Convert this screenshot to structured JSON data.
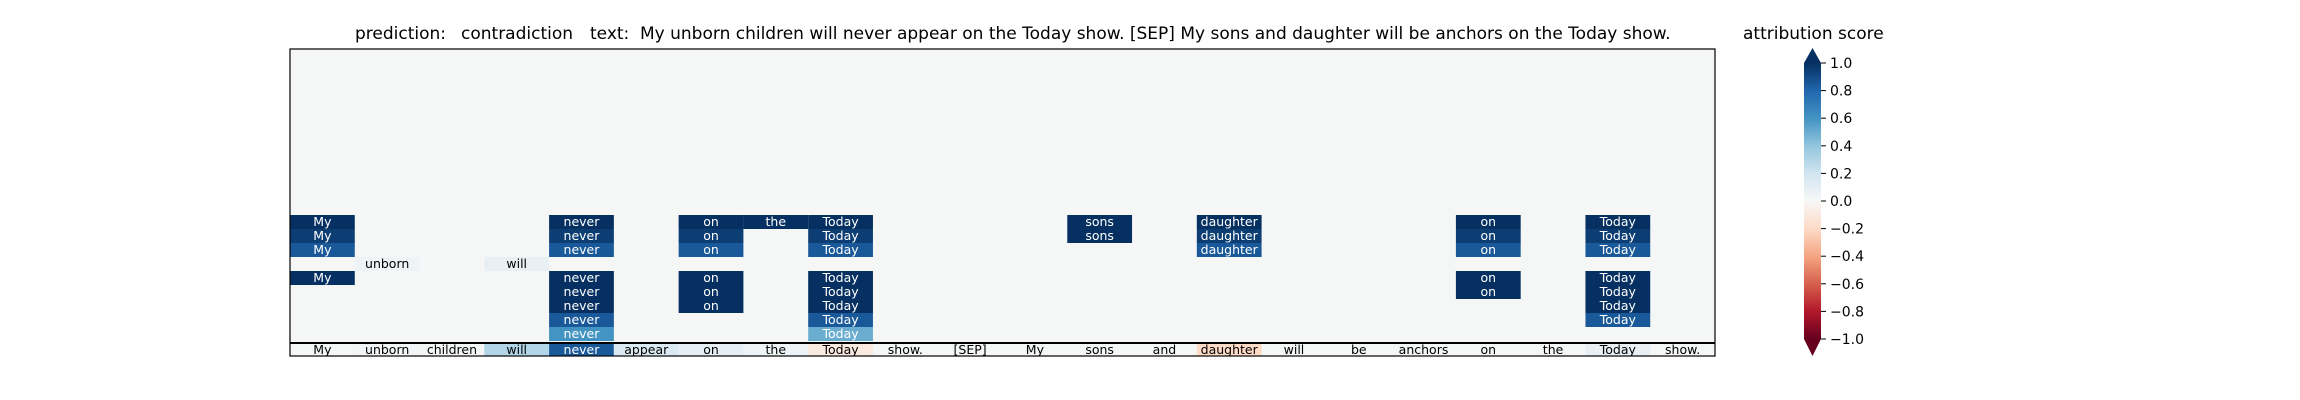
{
  "title": {
    "prediction_label": "prediction:",
    "prediction_value": "contradiction",
    "text_label": "text:",
    "text_value": "My unborn children will never appear on the Today show. [SEP] My sons and daughter will be anchors on the Today show."
  },
  "colorbar": {
    "title": "attribution score",
    "ticks": [
      "1.0",
      "0.8",
      "0.6",
      "0.4",
      "0.2",
      "0.0",
      "−0.2",
      "−0.4",
      "−0.6",
      "−0.8",
      "−1.0"
    ],
    "colormap": "RdBu",
    "range": [
      -1.0,
      1.0
    ]
  },
  "chart_data": {
    "type": "heatmap",
    "title": "prediction:  contradiction     text:  My unborn children will never appear on the Today show. [SEP] My sons and daughter will be anchors on the Today show.",
    "tokens": [
      "My",
      "unborn",
      "children",
      "will",
      "never",
      "appear",
      "on",
      "the",
      "Today",
      "show.",
      "[SEP]",
      "My",
      "sons",
      "and",
      "daughter",
      "will",
      "be",
      "anchors",
      "on",
      "the",
      "Today",
      "show."
    ],
    "bottom_row_scores": [
      0.0,
      0.02,
      0.0,
      0.3,
      0.85,
      0.15,
      0.1,
      0.05,
      -0.1,
      0.0,
      0.0,
      0.0,
      0.0,
      0.0,
      -0.2,
      0.0,
      0.0,
      0.0,
      0.0,
      0.0,
      0.08,
      0.0
    ],
    "layers": [
      {
        "cells": [
          {
            "token": 0,
            "value": 1.0
          },
          {
            "token": 4,
            "value": 1.0
          },
          {
            "token": 6,
            "value": 1.0
          },
          {
            "token": 7,
            "value": 1.0
          },
          {
            "token": 8,
            "value": 1.0
          },
          {
            "token": 12,
            "value": 1.0
          },
          {
            "token": 14,
            "value": 1.0
          },
          {
            "token": 18,
            "value": 1.0
          },
          {
            "token": 20,
            "value": 1.0
          }
        ]
      },
      {
        "cells": [
          {
            "token": 0,
            "value": 0.95
          },
          {
            "token": 4,
            "value": 0.95
          },
          {
            "token": 6,
            "value": 0.95
          },
          {
            "token": 8,
            "value": 0.95
          },
          {
            "token": 12,
            "value": 1.0
          },
          {
            "token": 14,
            "value": 0.95
          },
          {
            "token": 18,
            "value": 0.95
          },
          {
            "token": 20,
            "value": 0.95
          }
        ]
      },
      {
        "cells": [
          {
            "token": 0,
            "value": 0.85
          },
          {
            "token": 4,
            "value": 0.85
          },
          {
            "token": 6,
            "value": 0.85
          },
          {
            "token": 8,
            "value": 0.85
          },
          {
            "token": 14,
            "value": 0.85
          },
          {
            "token": 18,
            "value": 0.85
          },
          {
            "token": 20,
            "value": 0.85
          }
        ]
      },
      {
        "cells": [
          {
            "token": 1,
            "value": 0.05
          },
          {
            "token": 3,
            "value": 0.08
          }
        ]
      },
      {
        "cells": [
          {
            "token": 0,
            "value": 1.0
          },
          {
            "token": 4,
            "value": 1.0
          },
          {
            "token": 6,
            "value": 1.0
          },
          {
            "token": 8,
            "value": 1.0
          },
          {
            "token": 18,
            "value": 1.0
          },
          {
            "token": 20,
            "value": 1.0
          }
        ]
      },
      {
        "cells": [
          {
            "token": 4,
            "value": 1.0
          },
          {
            "token": 6,
            "value": 1.0
          },
          {
            "token": 8,
            "value": 1.0
          },
          {
            "token": 18,
            "value": 1.0
          },
          {
            "token": 20,
            "value": 1.0
          }
        ]
      },
      {
        "cells": [
          {
            "token": 4,
            "value": 1.0
          },
          {
            "token": 6,
            "value": 1.0
          },
          {
            "token": 8,
            "value": 1.0
          },
          {
            "token": 20,
            "value": 1.0
          }
        ]
      },
      {
        "cells": [
          {
            "token": 4,
            "value": 0.85
          },
          {
            "token": 8,
            "value": 0.85
          },
          {
            "token": 20,
            "value": 0.85
          }
        ]
      },
      {
        "cells": [
          {
            "token": 4,
            "value": 0.6
          },
          {
            "token": 8,
            "value": 0.5
          }
        ]
      }
    ],
    "colorbar_range": [
      -1.0,
      1.0
    ],
    "colorbar_label": "attribution score"
  },
  "colors": {
    "plot_background": "#f5f7f7",
    "frame": "#000000"
  }
}
